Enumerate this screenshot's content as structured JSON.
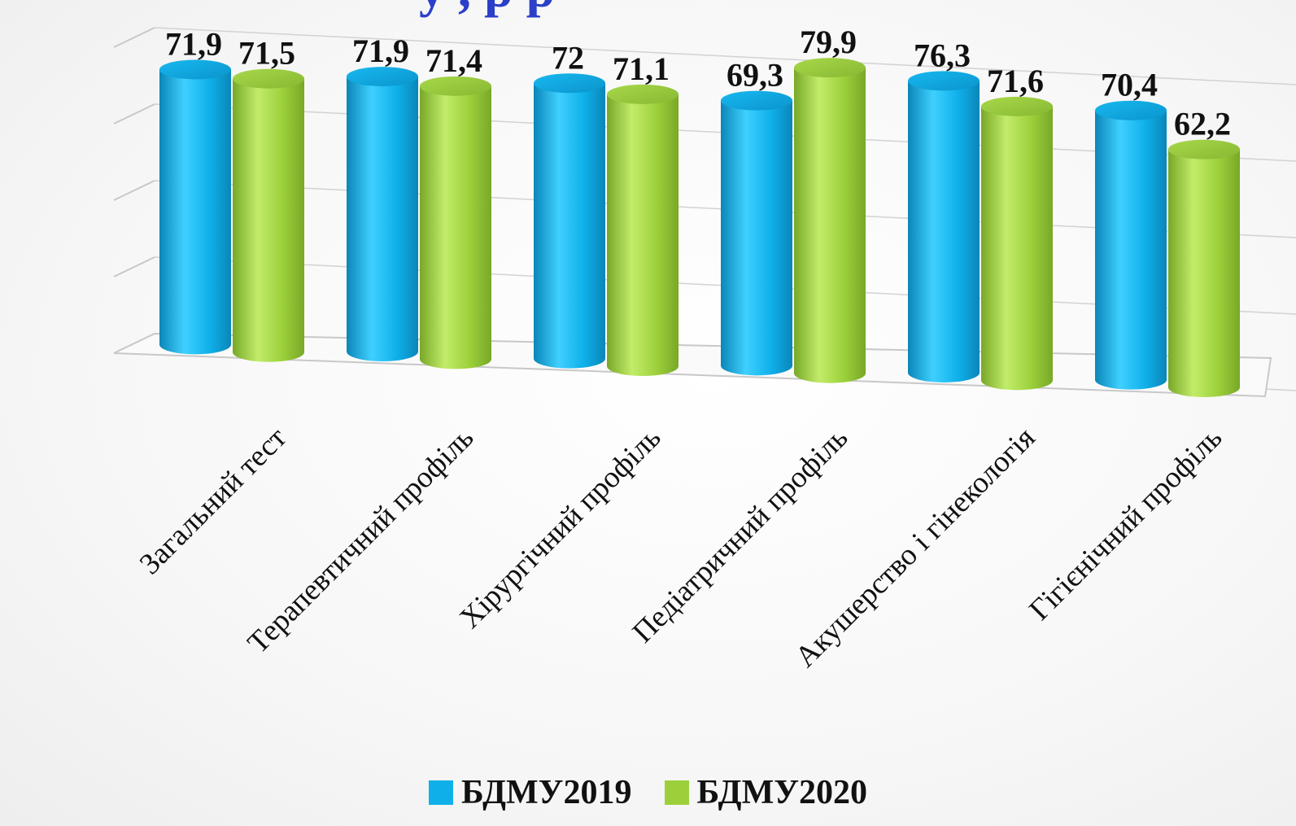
{
  "title_fragment": "у    ,    р р",
  "chart_data": {
    "type": "bar",
    "title": "",
    "xlabel": "",
    "ylabel": "",
    "ylim": [
      0,
      90
    ],
    "grid": true,
    "legend_position": "bottom",
    "categories": [
      "Загальний тест",
      "Терапевтичний профіль",
      "Хірургічний профіль",
      "Педіатричний профіль",
      "Акушерство і гінекологія",
      "Гігієнічний профіль"
    ],
    "series": [
      {
        "name": "БДМУ2019",
        "color": "#0fb0ea",
        "values": [
          71.9,
          71.9,
          72,
          69.3,
          76.3,
          70.4
        ],
        "labels": [
          "71,9",
          "71,9",
          "72",
          "69,3",
          "76,3",
          "70,4"
        ]
      },
      {
        "name": "БДМУ2020",
        "color": "#9cd03a",
        "values": [
          71.5,
          71.4,
          71.1,
          79.9,
          71.6,
          62.2
        ],
        "labels": [
          "71,5",
          "71,4",
          "71,1",
          "79,9",
          "71,6",
          "62,2"
        ]
      }
    ]
  },
  "legend": {
    "items": [
      {
        "label": "БДМУ2019",
        "color": "#0fb0ea"
      },
      {
        "label": "БДМУ2020",
        "color": "#9cd03a"
      }
    ]
  }
}
